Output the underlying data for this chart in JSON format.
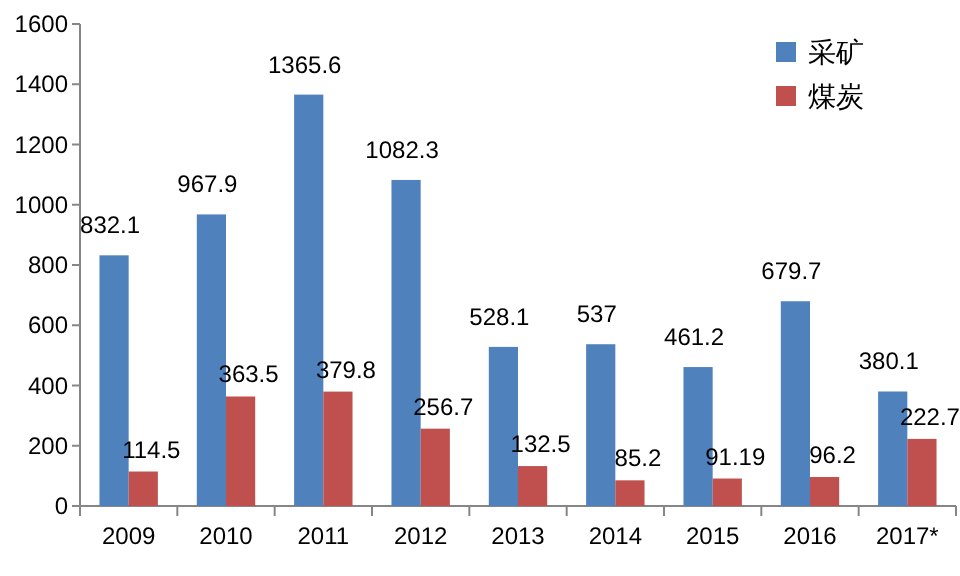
{
  "chart_data": {
    "type": "bar",
    "categories": [
      "2009",
      "2010",
      "2011",
      "2012",
      "2013",
      "2014",
      "2015",
      "2016",
      "2017*"
    ],
    "series": [
      {
        "name": "采矿",
        "color": "#4f81bd",
        "values": [
          832.1,
          967.9,
          1365.6,
          1082.3,
          528.1,
          537,
          461.2,
          679.7,
          380.1
        ]
      },
      {
        "name": "煤炭",
        "color": "#c0504d",
        "values": [
          114.5,
          363.5,
          379.8,
          256.7,
          132.5,
          85.2,
          91.19,
          96.2,
          222.7
        ]
      }
    ],
    "ylim": [
      0,
      1600
    ],
    "yticks": [
      0,
      200,
      400,
      600,
      800,
      1000,
      1200,
      1400,
      1600
    ],
    "data_labels": true,
    "legend": "top right",
    "grid": false
  }
}
